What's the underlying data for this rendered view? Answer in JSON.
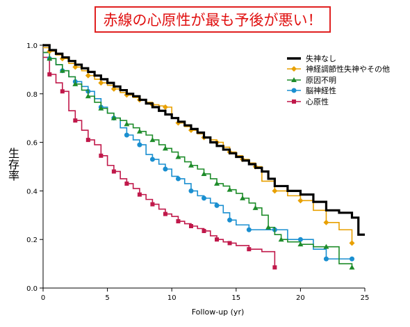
{
  "banner": {
    "text": "赤線の心原性が最も予後が悪い！",
    "border_color": "#e02020",
    "text_color": "#e01010"
  },
  "chart_data": {
    "type": "line",
    "step": true,
    "xlabel": "Follow-up (yr)",
    "ylabel": "生存率",
    "xlim": [
      0,
      25
    ],
    "ylim": [
      0,
      1.0
    ],
    "xticks": [
      "0",
      "5",
      "10",
      "15",
      "20",
      "25"
    ],
    "yticks": [
      "0.0",
      "0.2",
      "0.4",
      "0.6",
      "0.8",
      "1.0"
    ],
    "grid": false,
    "legend_position": "top-right",
    "series": [
      {
        "name": "失神なし",
        "color": "#000000",
        "marker": "none",
        "x": [
          0,
          0.5,
          1,
          1.5,
          2,
          2.5,
          3,
          3.5,
          4,
          4.5,
          5,
          5.5,
          6,
          6.5,
          7,
          7.5,
          8,
          8.5,
          9,
          9.5,
          10,
          10.5,
          11,
          11.5,
          12,
          12.5,
          13,
          13.5,
          14,
          14.5,
          15,
          15.5,
          16,
          16.5,
          17,
          17.5,
          18,
          19,
          20,
          21,
          22,
          23,
          24,
          24.5,
          25
        ],
        "y": [
          1.0,
          0.98,
          0.965,
          0.95,
          0.935,
          0.92,
          0.905,
          0.89,
          0.875,
          0.86,
          0.845,
          0.83,
          0.815,
          0.8,
          0.79,
          0.775,
          0.76,
          0.745,
          0.73,
          0.715,
          0.7,
          0.685,
          0.67,
          0.655,
          0.64,
          0.62,
          0.6,
          0.585,
          0.57,
          0.555,
          0.54,
          0.525,
          0.51,
          0.495,
          0.48,
          0.45,
          0.42,
          0.4,
          0.385,
          0.355,
          0.32,
          0.31,
          0.29,
          0.22,
          0.22
        ]
      },
      {
        "name": "神経調節性失神やその他",
        "color": "#e8a000",
        "marker": "diamond",
        "x": [
          0,
          0.5,
          1,
          1.5,
          2,
          2.5,
          3,
          3.5,
          4,
          4.5,
          5,
          5.5,
          6,
          6.5,
          7,
          7.5,
          8,
          8.5,
          9,
          9.5,
          10,
          10.5,
          11,
          11.5,
          12,
          12.5,
          13,
          13.5,
          14,
          14.5,
          15,
          15.5,
          16,
          16.5,
          17,
          18,
          19,
          20,
          21,
          22,
          23,
          24
        ],
        "y": [
          0.99,
          0.975,
          0.96,
          0.945,
          0.925,
          0.91,
          0.895,
          0.875,
          0.86,
          0.845,
          0.835,
          0.82,
          0.805,
          0.795,
          0.785,
          0.775,
          0.765,
          0.755,
          0.75,
          0.745,
          0.7,
          0.68,
          0.665,
          0.65,
          0.635,
          0.62,
          0.61,
          0.6,
          0.58,
          0.56,
          0.545,
          0.53,
          0.515,
          0.5,
          0.44,
          0.4,
          0.38,
          0.36,
          0.32,
          0.27,
          0.24,
          0.185
        ]
      },
      {
        "name": "原因不明",
        "color": "#1e8c2a",
        "marker": "triangle",
        "x": [
          0,
          0.5,
          1,
          1.5,
          2,
          2.5,
          3,
          3.5,
          4,
          4.5,
          5,
          5.5,
          6,
          6.5,
          7,
          7.5,
          8,
          8.5,
          9,
          9.5,
          10,
          10.5,
          11,
          11.5,
          12,
          12.5,
          13,
          13.5,
          14,
          14.5,
          15,
          15.5,
          16,
          16.5,
          17,
          17.5,
          18,
          18.5,
          19,
          20,
          21,
          22,
          23,
          24
        ],
        "y": [
          0.97,
          0.945,
          0.92,
          0.895,
          0.87,
          0.84,
          0.815,
          0.79,
          0.765,
          0.74,
          0.72,
          0.7,
          0.69,
          0.675,
          0.66,
          0.645,
          0.63,
          0.61,
          0.59,
          0.575,
          0.56,
          0.54,
          0.52,
          0.505,
          0.49,
          0.47,
          0.45,
          0.43,
          0.42,
          0.405,
          0.39,
          0.37,
          0.35,
          0.33,
          0.3,
          0.25,
          0.22,
          0.2,
          0.19,
          0.18,
          0.17,
          0.17,
          0.1,
          0.085
        ]
      },
      {
        "name": "脳神経性",
        "color": "#1a8fd0",
        "marker": "circle",
        "x": [
          0,
          0.5,
          1,
          1.5,
          2,
          2.5,
          3,
          3.5,
          4,
          4.5,
          5,
          5.5,
          6,
          6.5,
          7,
          7.5,
          8,
          8.5,
          9,
          9.5,
          10,
          10.5,
          11,
          11.5,
          12,
          12.5,
          13,
          13.5,
          14,
          14.5,
          15,
          16,
          17,
          18,
          19,
          20,
          21,
          22,
          23,
          24
        ],
        "y": [
          0.97,
          0.945,
          0.92,
          0.895,
          0.87,
          0.85,
          0.83,
          0.81,
          0.78,
          0.745,
          0.72,
          0.7,
          0.66,
          0.63,
          0.61,
          0.59,
          0.55,
          0.53,
          0.51,
          0.49,
          0.46,
          0.45,
          0.43,
          0.4,
          0.38,
          0.37,
          0.35,
          0.34,
          0.31,
          0.28,
          0.26,
          0.24,
          0.24,
          0.24,
          0.2,
          0.2,
          0.16,
          0.12,
          0.12,
          0.12
        ]
      },
      {
        "name": "心原性",
        "color": "#c0184a",
        "marker": "square",
        "x": [
          0,
          0.5,
          1,
          1.5,
          2,
          2.5,
          3,
          3.5,
          4,
          4.5,
          5,
          5.5,
          6,
          6.5,
          7,
          7.5,
          8,
          8.5,
          9,
          9.5,
          10,
          10.5,
          11,
          11.5,
          12,
          12.5,
          13,
          13.5,
          14,
          14.5,
          15,
          16,
          17,
          18
        ],
        "y": [
          0.95,
          0.88,
          0.845,
          0.81,
          0.73,
          0.69,
          0.65,
          0.61,
          0.59,
          0.545,
          0.505,
          0.48,
          0.45,
          0.43,
          0.41,
          0.385,
          0.365,
          0.345,
          0.325,
          0.305,
          0.295,
          0.275,
          0.265,
          0.255,
          0.245,
          0.235,
          0.215,
          0.2,
          0.19,
          0.185,
          0.175,
          0.16,
          0.15,
          0.085
        ]
      }
    ]
  }
}
